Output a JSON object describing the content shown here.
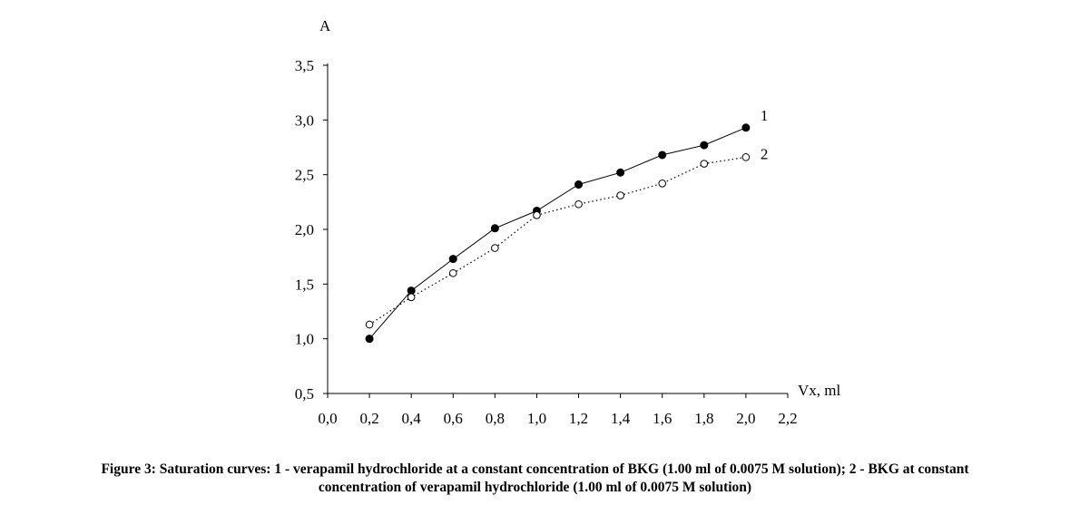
{
  "chart_data": {
    "type": "line",
    "ylabel": "A",
    "xlabel": "Vx, ml",
    "xlim": [
      0.0,
      2.2
    ],
    "ylim": [
      0.5,
      3.5
    ],
    "x_ticks": [
      "0,0",
      "0,2",
      "0,4",
      "0,6",
      "0,8",
      "1,0",
      "1,2",
      "1,4",
      "1,6",
      "1,8",
      "2,0",
      "2,2"
    ],
    "x_tick_values": [
      0.0,
      0.2,
      0.4,
      0.6,
      0.8,
      1.0,
      1.2,
      1.4,
      1.6,
      1.8,
      2.0,
      2.2
    ],
    "y_ticks": [
      "0,5",
      "1,0",
      "1,5",
      "2,0",
      "2,5",
      "3,0",
      "3,5"
    ],
    "y_tick_values": [
      0.5,
      1.0,
      1.5,
      2.0,
      2.5,
      3.0,
      3.5
    ],
    "grid": false,
    "legend": "none",
    "series": [
      {
        "label": "1",
        "marker": "filled-circle",
        "line_style": "solid",
        "x": [
          0.2,
          0.4,
          0.6,
          0.8,
          1.0,
          1.2,
          1.4,
          1.6,
          1.8,
          2.0
        ],
        "y": [
          1.0,
          1.44,
          1.73,
          2.01,
          2.17,
          2.41,
          2.52,
          2.68,
          2.77,
          2.93
        ]
      },
      {
        "label": "2",
        "marker": "open-circle",
        "line_style": "dotted",
        "x": [
          0.2,
          0.4,
          0.6,
          0.8,
          1.0,
          1.2,
          1.4,
          1.6,
          1.8,
          2.0
        ],
        "y": [
          1.13,
          1.38,
          1.6,
          1.83,
          2.13,
          2.23,
          2.31,
          2.42,
          2.6,
          2.66
        ]
      }
    ]
  },
  "caption": {
    "line1": "Figure 3: Saturation curves: 1 - verapamil hydrochloride at a constant concentration of BKG (1.00 ml of 0.0075 M solution); 2 - BKG at constant",
    "line2": "concentration of verapamil hydrochloride (1.00 ml of 0.0075 M solution)"
  }
}
